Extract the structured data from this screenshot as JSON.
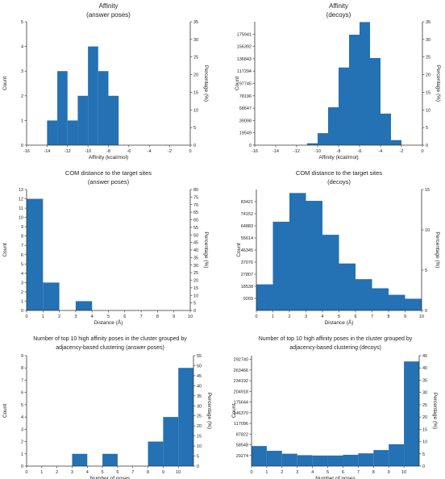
{
  "chart_data": [
    {
      "type": "bar",
      "title": "Affinity",
      "subtitle": "(answer poses)",
      "xlabel": "Affinity (kcal/mol)",
      "ylabel": "Count",
      "y2label": "Percentage (%)",
      "xlim": [
        -16,
        0
      ],
      "xticks": [
        -16,
        -14,
        -12,
        -10,
        -8,
        -6,
        -4,
        -2,
        0
      ],
      "ylim": [
        0,
        5
      ],
      "yticks": [
        "0",
        "1",
        "2",
        "3",
        "4",
        "5"
      ],
      "y2lim": [
        0,
        35
      ],
      "y2ticks": [
        "0",
        "5",
        "10",
        "15",
        "20",
        "25",
        "30",
        "35"
      ],
      "bins": [
        {
          "x0": -14,
          "x1": -13,
          "value": 1
        },
        {
          "x0": -13,
          "x1": -12,
          "value": 3
        },
        {
          "x0": -12,
          "x1": -11,
          "value": 1
        },
        {
          "x0": -11,
          "x1": -10,
          "value": 2
        },
        {
          "x0": -10,
          "x1": -9,
          "value": 4
        },
        {
          "x0": -9,
          "x1": -8,
          "value": 3
        },
        {
          "x0": -8,
          "x1": -7,
          "value": 2
        }
      ]
    },
    {
      "type": "bar",
      "title": "Affinity",
      "subtitle": "(decoys)",
      "xlabel": "Affinity (kcal/mol)",
      "ylabel": "Count",
      "y2label": "Percentage (%)",
      "xlim": [
        -16,
        0
      ],
      "xticks": [
        -16,
        -14,
        -12,
        -10,
        -8,
        -6,
        -4,
        -2,
        0
      ],
      "ylim": [
        0,
        195490
      ],
      "yticks": [
        "0",
        "19549",
        "39098",
        "58647",
        "78196",
        "97745",
        "117294",
        "136843",
        "156392",
        "175941"
      ],
      "y2lim": [
        0,
        35
      ],
      "y2ticks": [
        "0",
        "5",
        "10",
        "15",
        "20",
        "25",
        "30",
        "35"
      ],
      "bins": [
        {
          "x0": -11,
          "x1": -10,
          "value": 3000
        },
        {
          "x0": -10,
          "x1": -9,
          "value": 19000
        },
        {
          "x0": -9,
          "x1": -8,
          "value": 60000
        },
        {
          "x0": -8,
          "x1": -7,
          "value": 123000
        },
        {
          "x0": -7,
          "x1": -6,
          "value": 175000
        },
        {
          "x0": -6,
          "x1": -5,
          "value": 195000
        },
        {
          "x0": -5,
          "x1": -4,
          "value": 138000
        },
        {
          "x0": -4,
          "x1": -3,
          "value": 50000
        },
        {
          "x0": -3,
          "x1": -2,
          "value": 8000
        }
      ]
    },
    {
      "type": "bar",
      "title": "COM distance to the target sites",
      "subtitle": "(answer poses)",
      "xlabel": "Distance (Å)",
      "ylabel": "Count",
      "y2label": "Percentage (%)",
      "xlim": [
        0,
        10
      ],
      "xticks": [
        0,
        1,
        2,
        3,
        4,
        5,
        6,
        7,
        8,
        9,
        10
      ],
      "ylim": [
        0,
        13
      ],
      "yticks": [
        "0",
        "1",
        "2",
        "3",
        "4",
        "5",
        "6",
        "7",
        "8",
        "9",
        "10",
        "11",
        "12",
        "13"
      ],
      "y2lim": [
        0,
        80
      ],
      "y2ticks": [
        "0",
        "5",
        "10",
        "15",
        "20",
        "25",
        "30",
        "35",
        "40",
        "45",
        "50",
        "55",
        "60",
        "65",
        "70",
        "75",
        "80"
      ],
      "bins": [
        {
          "x0": 0,
          "x1": 1,
          "value": 12
        },
        {
          "x0": 1,
          "x1": 2,
          "value": 3
        },
        {
          "x0": 3,
          "x1": 4,
          "value": 1
        }
      ]
    },
    {
      "type": "bar",
      "title": "COM distance to the target sites",
      "subtitle": "(decoys)",
      "xlabel": "Distance (Å)",
      "ylabel": "Count",
      "y2label": "Percentage (%)",
      "xlim": [
        0,
        10
      ],
      "xticks": [
        0,
        1,
        2,
        3,
        4,
        5,
        6,
        7,
        8,
        9,
        10
      ],
      "ylim": [
        0,
        92690
      ],
      "yticks": [
        "9269",
        "18538",
        "27807",
        "37076",
        "46345",
        "55614",
        "64883",
        "74152",
        "83421"
      ],
      "y2lim": [
        0,
        15
      ],
      "y2ticks": [
        "0",
        "5",
        "10",
        "15"
      ],
      "bins": [
        {
          "x0": 0,
          "x1": 1,
          "value": 20000
        },
        {
          "x0": 1,
          "x1": 2,
          "value": 68000
        },
        {
          "x0": 2,
          "x1": 3,
          "value": 90000
        },
        {
          "x0": 3,
          "x1": 4,
          "value": 84000
        },
        {
          "x0": 4,
          "x1": 5,
          "value": 58000
        },
        {
          "x0": 5,
          "x1": 6,
          "value": 36000
        },
        {
          "x0": 6,
          "x1": 7,
          "value": 24000
        },
        {
          "x0": 7,
          "x1": 8,
          "value": 17000
        },
        {
          "x0": 8,
          "x1": 9,
          "value": 12000
        },
        {
          "x0": 9,
          "x1": 10,
          "value": 9000
        }
      ]
    },
    {
      "type": "bar",
      "title": "Number of top 10 high affinity poses in the cluster grouped by",
      "subtitle": "adjacency-based clustering (answer poses)",
      "xlabel": "Number of poses",
      "ylabel": "Count",
      "y2label": "Percentage (%)",
      "xlim": [
        0,
        11
      ],
      "xticks": [
        0,
        1,
        2,
        3,
        4,
        5,
        6,
        7,
        8,
        9,
        10
      ],
      "ylim": [
        0,
        9
      ],
      "yticks": [
        "0",
        "1",
        "2",
        "3",
        "4",
        "5",
        "6",
        "7",
        "8",
        "9"
      ],
      "y2lim": [
        0,
        55
      ],
      "y2ticks": [
        "0",
        "5",
        "10",
        "15",
        "20",
        "25",
        "30",
        "35",
        "40",
        "45",
        "50",
        "55"
      ],
      "bins": [
        {
          "x0": 3,
          "x1": 4,
          "value": 1
        },
        {
          "x0": 5,
          "x1": 6,
          "value": 1
        },
        {
          "x0": 8,
          "x1": 9,
          "value": 2
        },
        {
          "x0": 9,
          "x1": 10,
          "value": 4
        },
        {
          "x0": 10,
          "x1": 11,
          "value": 8
        }
      ]
    },
    {
      "type": "bar",
      "title": "Number of top 10 high affinity poses in the cluster grouped by",
      "subtitle": "adjacency-based clustering (decoys)",
      "xlabel": "Number of poses",
      "ylabel": "Count",
      "y2label": "Percentage (%)",
      "xlim": [
        0,
        11
      ],
      "xticks": [
        0,
        1,
        2,
        3,
        4,
        5,
        6,
        7,
        8,
        9,
        10
      ],
      "ylim": [
        0,
        303000
      ],
      "yticks": [
        "29274",
        "58548",
        "87822",
        "117096",
        "146370",
        "175644",
        "204918",
        "234192",
        "263466",
        "292740"
      ],
      "y2lim": [
        0,
        45
      ],
      "y2ticks": [
        "0",
        "5",
        "10",
        "15",
        "20",
        "25",
        "30",
        "35",
        "40",
        "45"
      ],
      "bins": [
        {
          "x0": 0,
          "x1": 1,
          "value": 55000
        },
        {
          "x0": 1,
          "x1": 2,
          "value": 42000
        },
        {
          "x0": 2,
          "x1": 3,
          "value": 34000
        },
        {
          "x0": 3,
          "x1": 4,
          "value": 30000
        },
        {
          "x0": 4,
          "x1": 5,
          "value": 29000
        },
        {
          "x0": 5,
          "x1": 6,
          "value": 29000
        },
        {
          "x0": 6,
          "x1": 7,
          "value": 31000
        },
        {
          "x0": 7,
          "x1": 8,
          "value": 35000
        },
        {
          "x0": 8,
          "x1": 9,
          "value": 44000
        },
        {
          "x0": 9,
          "x1": 10,
          "value": 60000
        },
        {
          "x0": 10,
          "x1": 11,
          "value": 287000
        }
      ]
    }
  ],
  "colors": {
    "bar": "#2471b3",
    "axis": "#333333",
    "text": "#222222"
  }
}
